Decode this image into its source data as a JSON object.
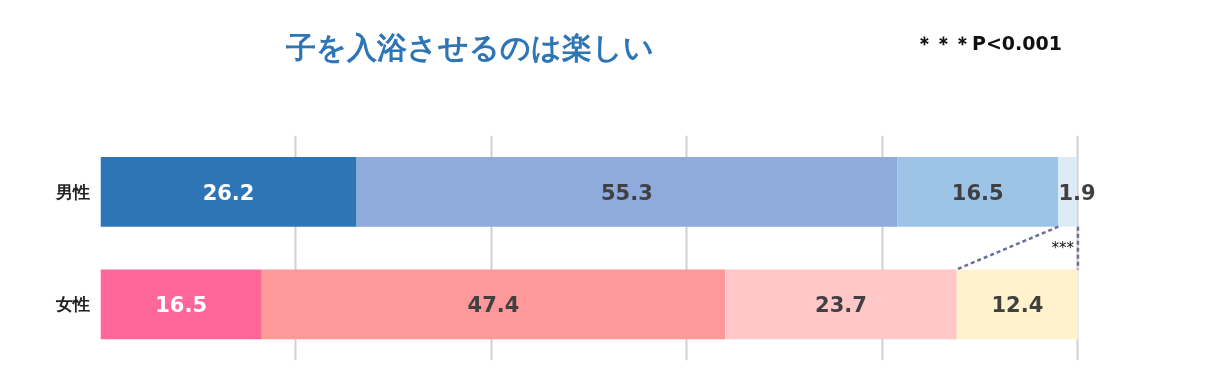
{
  "chart_data": {
    "type": "bar",
    "orientation": "horizontal",
    "stacked": true,
    "title": "子を入浴させるのは楽しい",
    "categories": [
      "男性",
      "女性"
    ],
    "series": [
      {
        "colors": [
          "#2e75b6",
          "#ff6699"
        ],
        "values": [
          26.2,
          16.5
        ]
      },
      {
        "colors": [
          "#8faadc",
          "#ff9999"
        ],
        "values": [
          55.3,
          47.4
        ]
      },
      {
        "colors": [
          "#9dc3e6",
          "#ffc7c7"
        ],
        "values": [
          16.5,
          23.7
        ]
      },
      {
        "colors": [
          "#deebf7",
          "#fff2cc"
        ],
        "values": [
          1.9,
          12.4
        ]
      }
    ],
    "data_labels": true,
    "xlim": [
      0,
      100
    ],
    "grid": "x",
    "tick_labels": "y",
    "annotations": [
      "＊＊＊P<0.001",
      "***"
    ]
  }
}
